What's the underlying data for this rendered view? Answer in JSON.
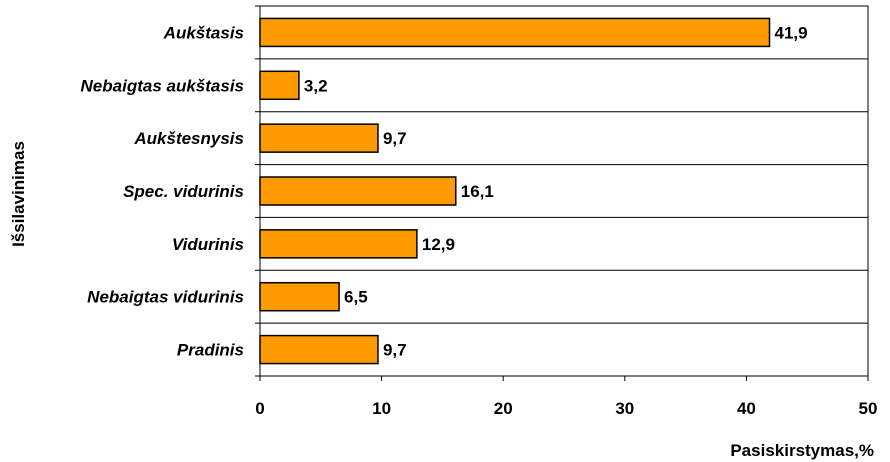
{
  "chart_data": {
    "type": "bar",
    "orientation": "horizontal",
    "categories": [
      "Aukštasis",
      "Nebaigtas aukštasis",
      "Aukštesnysis",
      "Spec. vidurinis",
      "Vidurinis",
      "Nebaigtas vidurinis",
      "Pradinis"
    ],
    "values": [
      41.9,
      3.2,
      9.7,
      16.1,
      12.9,
      6.5,
      9.7
    ],
    "value_labels": [
      "41,9",
      "3,2",
      "9,7",
      "16,1",
      "12,9",
      "6,5",
      "9,7"
    ],
    "xlabel": "Pasiskirstymas,%",
    "ylabel": "Išsilavinimas",
    "xlim": [
      0,
      50
    ],
    "xticks": [
      0,
      10,
      20,
      30,
      40,
      50
    ],
    "grid": "horizontal",
    "colors": {
      "bar": "#FF9900",
      "bar_border": "#000000",
      "grid": "#000000"
    }
  }
}
